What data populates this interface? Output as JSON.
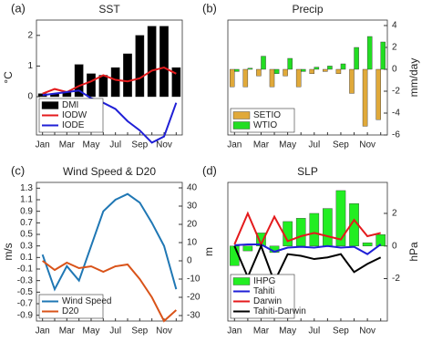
{
  "chart_data": [
    {
      "type": "combo",
      "label": "(a)",
      "title": "SST",
      "ylabel": "°C",
      "yaxis_side": "left",
      "legend": "lower left",
      "categories": [
        "Jan",
        null,
        "Mar",
        null,
        "May",
        null,
        "Jul",
        null,
        "Sep",
        null,
        "Nov",
        null
      ],
      "ylim": [
        -1.25,
        2.5
      ],
      "yticks": [
        0,
        1,
        2
      ],
      "series": [
        {
          "name": "DMI",
          "type": "bar",
          "color": "#000000",
          "values": [
            0.1,
            0.1,
            0.15,
            1.05,
            0.75,
            0.7,
            0.95,
            1.4,
            2.0,
            2.3,
            2.3,
            0.95
          ]
        },
        {
          "name": "IODW",
          "type": "line",
          "color": "#e41a1c",
          "values": [
            0.1,
            0.25,
            0.15,
            0.35,
            0.5,
            0.7,
            0.55,
            0.5,
            0.6,
            0.85,
            0.95,
            0.75
          ]
        },
        {
          "name": "IODE",
          "type": "line",
          "color": "#1f1fd6",
          "values": [
            0.05,
            0.1,
            0.15,
            0.2,
            -0.05,
            -0.2,
            -0.4,
            -0.8,
            -1.1,
            -1.5,
            -1.3,
            -0.2
          ]
        }
      ]
    },
    {
      "type": "combo",
      "label": "(b)",
      "title": "Precip",
      "ylabel": "mm/day",
      "yaxis_side": "right",
      "legend": "lower left",
      "categories": [
        "Jan",
        null,
        "Mar",
        null,
        "May",
        null,
        "Jul",
        null,
        "Sep",
        null,
        "Nov",
        null
      ],
      "ylim": [
        -6,
        4.5
      ],
      "yticks": [
        -6,
        -4,
        -2,
        0,
        2,
        4
      ],
      "series": [
        {
          "name": "SETIO",
          "type": "bar",
          "color": "#e0a93a",
          "values": [
            -1.6,
            -1.6,
            -0.6,
            -1.6,
            -0.6,
            -1.6,
            -0.4,
            -0.2,
            -0.4,
            -2.2,
            -5.2,
            -4.6
          ]
        },
        {
          "name": "WTIO",
          "type": "bar",
          "color": "#22dd22",
          "values": [
            -0.2,
            0.1,
            1.2,
            -0.4,
            1.0,
            -0.2,
            0.2,
            0.3,
            0.5,
            2.0,
            3.0,
            2.5
          ]
        }
      ]
    },
    {
      "type": "combo",
      "label": "(c)",
      "title": "Wind Speed & D20",
      "ylabel": "m/s",
      "y2label": "m",
      "yaxis_side": "left",
      "legend": "lower left",
      "categories": [
        "Jan",
        null,
        "Mar",
        null,
        "May",
        null,
        "Jul",
        null,
        "Sep",
        null,
        "Nov",
        null
      ],
      "ylim": [
        -1.0,
        1.4
      ],
      "yticks": [
        -0.9,
        -0.7,
        -0.5,
        -0.3,
        -0.1,
        0.1,
        0.3,
        0.5,
        0.7,
        0.9,
        1.1,
        1.3
      ],
      "y2lim": [
        -33,
        43
      ],
      "y2ticks": [
        -30,
        -20,
        -10,
        0,
        10,
        20,
        30,
        40
      ],
      "series": [
        {
          "name": "Wind Speed",
          "type": "line",
          "color": "#1f77b4",
          "values": [
            0.15,
            -0.45,
            -0.05,
            -0.3,
            0.3,
            0.9,
            1.1,
            1.2,
            1.05,
            0.7,
            0.3,
            -0.45
          ]
        },
        {
          "name": "D20",
          "type": "line",
          "axis": "y2",
          "color": "#d95319",
          "values": [
            0,
            -5,
            -1,
            -4,
            -3,
            -6,
            -3,
            -2,
            -10,
            -20,
            -33,
            -27
          ]
        }
      ]
    },
    {
      "type": "combo",
      "label": "(d)",
      "title": "SLP",
      "ylabel": "hPa",
      "yaxis_side": "right",
      "legend": "lower left",
      "categories": [
        "Jan",
        null,
        "Mar",
        null,
        "May",
        null,
        "Jul",
        null,
        "Sep",
        null,
        "Nov",
        null
      ],
      "ylim": [
        -4.6,
        3.9
      ],
      "yticks": [
        -2,
        0,
        2
      ],
      "series": [
        {
          "name": "IHPG",
          "type": "bar",
          "color": "#22ee22",
          "values": [
            -1.2,
            -0.3,
            0.8,
            -0.4,
            1.5,
            1.7,
            2.0,
            2.3,
            3.4,
            2.6,
            0.2,
            0.7
          ]
        },
        {
          "name": "Tahiti",
          "type": "line",
          "color": "#1f1fd6",
          "values": [
            0.05,
            0.1,
            0.1,
            -0.35,
            -0.1,
            -0.05,
            -0.1,
            0,
            -0.1,
            -0.05,
            -0.5,
            0.1
          ]
        },
        {
          "name": "Darwin",
          "type": "line",
          "color": "#e41a1c",
          "values": [
            0.1,
            2.0,
            0.1,
            1.8,
            0.3,
            0.6,
            0.8,
            0.6,
            0.4,
            1.6,
            0.6,
            0.8
          ]
        },
        {
          "name": "Tahiti-Darwin",
          "type": "line",
          "color": "#000000",
          "values": [
            0,
            -1.9,
            0,
            -2.2,
            -0.5,
            -0.6,
            -0.8,
            -0.7,
            -0.5,
            -1.6,
            -1.1,
            -0.7
          ]
        }
      ]
    }
  ]
}
